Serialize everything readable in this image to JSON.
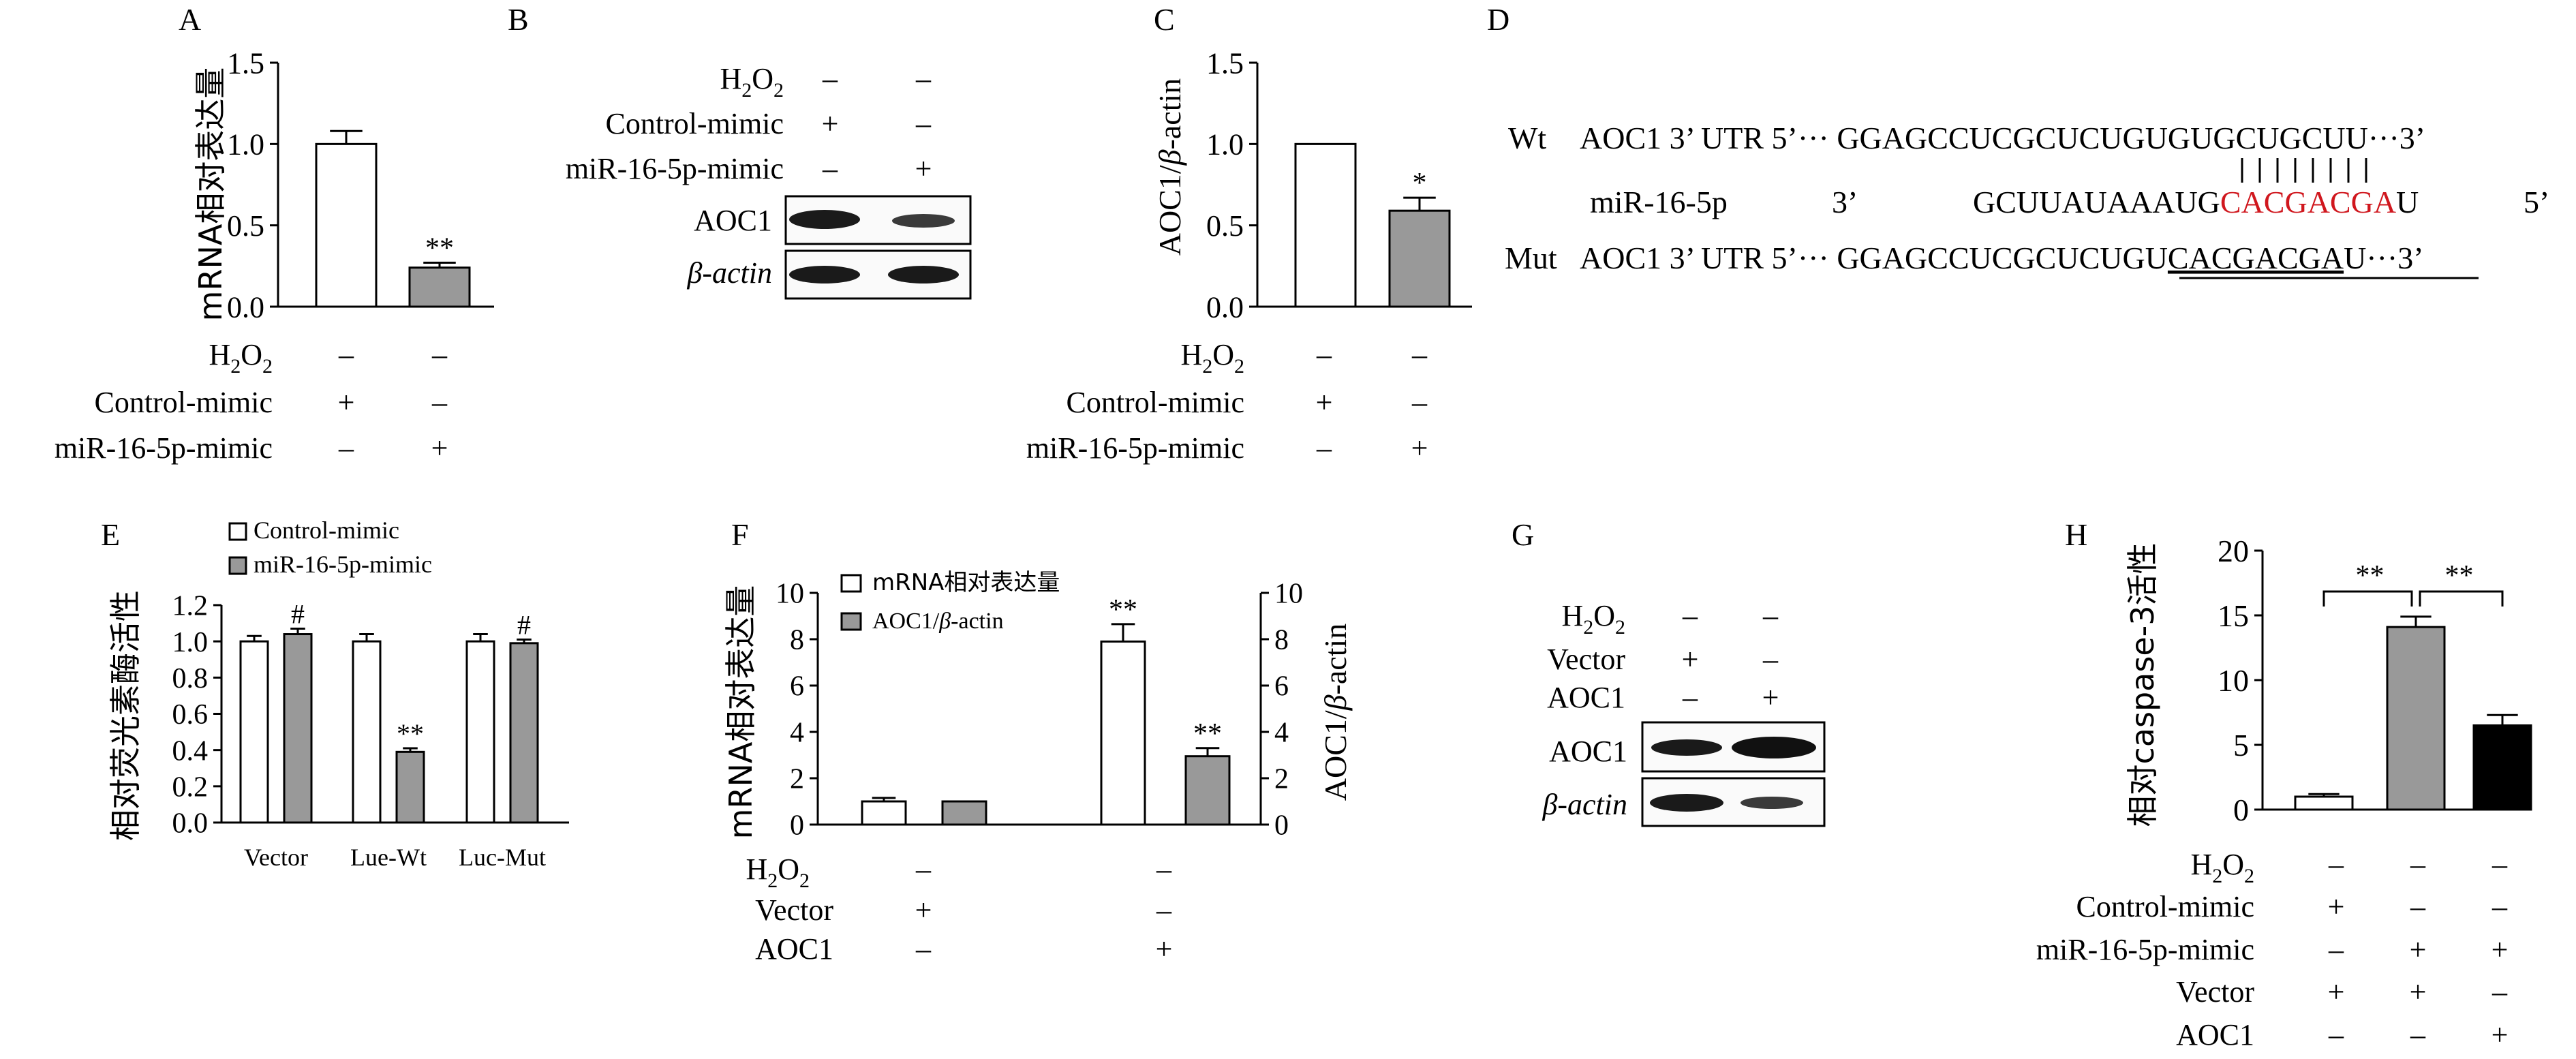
{
  "colors": {
    "open_bar": "#ffffff",
    "gray_bar": "#999999",
    "black_bar": "#000000",
    "seed_red": "#d0171e",
    "blot_band": "#1a1a1a"
  },
  "panels": {
    "A": {
      "letter": "A",
      "ylabel": "mRNA相对表达量",
      "yticks": [
        "1.5",
        "1.0",
        "0.5",
        "0.0"
      ],
      "sig": [
        "",
        "**"
      ],
      "cond_labels": [
        "H2O2",
        "Control-mimic",
        "miR-16-5p-mimic"
      ],
      "cond_values": [
        [
          "–",
          "–"
        ],
        [
          "+",
          "–"
        ],
        [
          "–",
          "+"
        ]
      ]
    },
    "B": {
      "letter": "B",
      "cond_labels": [
        "H2O2",
        "Control-mimic",
        "miR-16-5p-mimic"
      ],
      "cond_values": [
        [
          "–",
          "–"
        ],
        [
          "+",
          "–"
        ],
        [
          "–",
          "+"
        ]
      ],
      "blot_labels": [
        "AOC1",
        "β-actin"
      ]
    },
    "C": {
      "letter": "C",
      "ylabel": "AOC1/β-actin",
      "yticks": [
        "1.5",
        "1.0",
        "0.5",
        "0.0"
      ],
      "sig": [
        "",
        "*"
      ],
      "cond_labels": [
        "H2O2",
        "Control-mimic",
        "miR-16-5p-mimic"
      ],
      "cond_values": [
        [
          "–",
          "–"
        ],
        [
          "+",
          "–"
        ],
        [
          "–",
          "+"
        ]
      ]
    },
    "D": {
      "letter": "D",
      "wt_label": "Wt",
      "mut_label": "Mut",
      "utr_label": "AOC1 3’ UTR 5’···",
      "wt_seq_prefix": "GGAGCCUCGCUCUGU",
      "wt_seq_site": "GUGCUGCU",
      "wt_seq_end": "U···3’",
      "mir_name": "miR-16-5p",
      "mir_3p": "3’",
      "mir_seq_prefix": "GCUUAUAAAUG",
      "mir_seq_seed": "CACGACGA",
      "mir_seq_end": "U",
      "mir_5p": "5’",
      "mut_seq_prefix": "GGAGCCUCGCUCUGU",
      "mut_seq_site": "CACGACGA",
      "mut_seq_end": "U···3’"
    },
    "E": {
      "letter": "E",
      "ylabel": "相对荧光素酶活性",
      "yticks": [
        "1.2",
        "1.0",
        "0.8",
        "0.6",
        "0.4",
        "0.2",
        "0.0"
      ],
      "legend": [
        "Control-mimic",
        "miR-16-5p-mimic"
      ],
      "categories": [
        "Vector",
        "Lue-Wt",
        "Luc-Mut"
      ],
      "sig": [
        "#",
        "**",
        "#"
      ]
    },
    "F": {
      "letter": "F",
      "ylabel_left": "mRNA相对表达量",
      "ylabel_right": "AOC1/β-actin",
      "yticks": [
        "10",
        "8",
        "6",
        "4",
        "2",
        "0"
      ],
      "legend": [
        "mRNA相对表达量",
        "AOC1/β-actin"
      ],
      "sig": [
        "**",
        "**"
      ],
      "cond_labels": [
        "H2O2",
        "Vector",
        "AOC1"
      ],
      "cond_values": [
        [
          "–",
          "–"
        ],
        [
          "+",
          "–"
        ],
        [
          "–",
          "+"
        ]
      ]
    },
    "G": {
      "letter": "G",
      "cond_labels": [
        "H2O2",
        "Vector",
        "AOC1"
      ],
      "cond_values": [
        [
          "–",
          "–"
        ],
        [
          "+",
          "–"
        ],
        [
          "–",
          "+"
        ]
      ],
      "blot_labels": [
        "AOC1",
        "β-actin"
      ]
    },
    "H": {
      "letter": "H",
      "ylabel": "相对caspase-3活性",
      "yticks": [
        "20",
        "15",
        "10",
        "5",
        "0"
      ],
      "sig": [
        "**",
        "**"
      ],
      "cond_labels": [
        "H2O2",
        "Control-mimic",
        "miR-16-5p-mimic",
        "Vector",
        "AOC1"
      ],
      "cond_values": [
        [
          "–",
          "–",
          "–"
        ],
        [
          "+",
          "–",
          "–"
        ],
        [
          "–",
          "+",
          "+"
        ],
        [
          "+",
          "+",
          "–"
        ],
        [
          "–",
          "–",
          "+"
        ]
      ]
    }
  },
  "chart_data": [
    {
      "panel": "A",
      "type": "bar",
      "categories": [
        "Control-mimic",
        "miR-16-5p-mimic"
      ],
      "values": [
        1.0,
        0.24
      ],
      "errors": [
        0.08,
        0.03
      ],
      "ylabel": "mRNA相对表达量",
      "ylim": [
        0,
        1.5
      ]
    },
    {
      "panel": "C",
      "type": "bar",
      "categories": [
        "Control-mimic",
        "miR-16-5p-mimic"
      ],
      "values": [
        1.0,
        0.59
      ],
      "errors": [
        0.0,
        0.08
      ],
      "ylabel": "AOC1/β-actin",
      "ylim": [
        0,
        1.5
      ]
    },
    {
      "panel": "E",
      "type": "bar",
      "categories": [
        "Vector",
        "Lue-Wt",
        "Luc-Mut"
      ],
      "ylabel": "相对荧光素酶活性",
      "ylim": [
        0,
        1.2
      ],
      "series": [
        {
          "name": "Control-mimic",
          "values": [
            1.0,
            1.0,
            1.0
          ],
          "errors": [
            0.03,
            0.04,
            0.04
          ]
        },
        {
          "name": "miR-16-5p-mimic",
          "values": [
            1.04,
            0.39,
            0.99
          ],
          "errors": [
            0.03,
            0.02,
            0.02
          ]
        }
      ]
    },
    {
      "panel": "F",
      "type": "bar",
      "ylabel": "mRNA相对表达量",
      "ylim": [
        0,
        10
      ],
      "series": [
        {
          "name": "mRNA相对表达量",
          "values": [
            1.0,
            7.9
          ],
          "errors": [
            0.15,
            0.75
          ]
        },
        {
          "name": "AOC1/β-actin",
          "values": [
            1.0,
            2.95
          ],
          "errors": [
            0.0,
            0.35
          ]
        }
      ]
    },
    {
      "panel": "H",
      "type": "bar",
      "ylabel": "相对caspase-3活性",
      "ylim": [
        0,
        20
      ],
      "values": [
        1.0,
        14.1,
        6.5
      ],
      "errors": [
        0.2,
        0.8,
        0.8
      ]
    }
  ]
}
